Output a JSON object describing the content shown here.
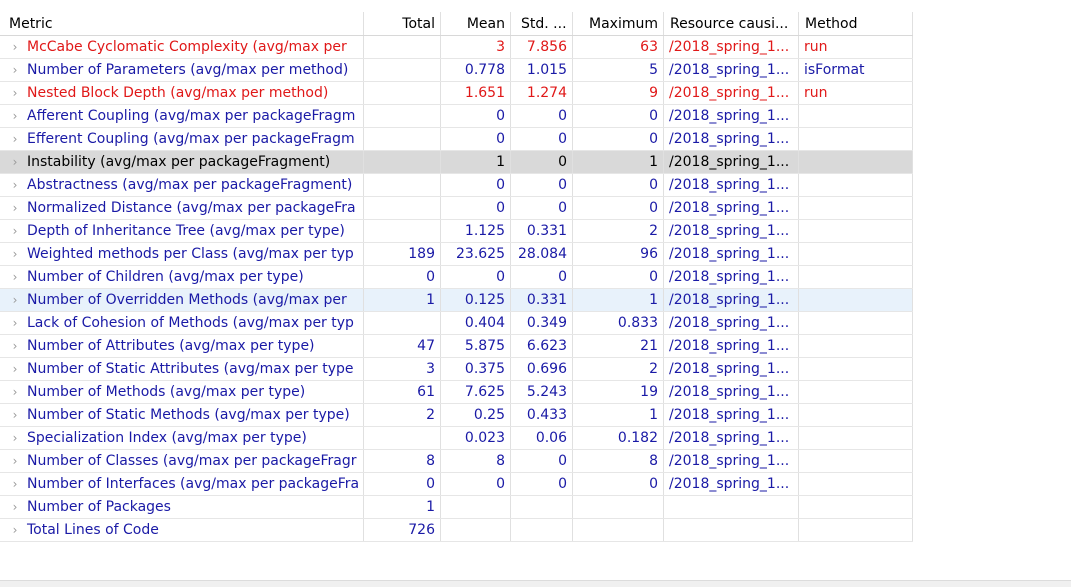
{
  "headers": {
    "metric": "Metric",
    "total": "Total",
    "mean": "Mean",
    "std": "Std. ...",
    "max": "Maximum",
    "resource": "Resource causi...",
    "method": "Method"
  },
  "rows": [
    {
      "metric": "McCabe Cyclomatic Complexity (avg/max per",
      "total": "",
      "mean": "3",
      "std": "7.856",
      "max": "63",
      "resource": "/2018_spring_1...",
      "method": "run"
    },
    {
      "metric": "Number of Parameters (avg/max per method)",
      "total": "",
      "mean": "0.778",
      "std": "1.015",
      "max": "5",
      "resource": "/2018_spring_1...",
      "method": "isFormat"
    },
    {
      "metric": "Nested Block Depth (avg/max per method)",
      "total": "",
      "mean": "1.651",
      "std": "1.274",
      "max": "9",
      "resource": "/2018_spring_1...",
      "method": "run"
    },
    {
      "metric": "Afferent Coupling (avg/max per packageFragm",
      "total": "",
      "mean": "0",
      "std": "0",
      "max": "0",
      "resource": "/2018_spring_1...",
      "method": ""
    },
    {
      "metric": "Efferent Coupling (avg/max per packageFragm",
      "total": "",
      "mean": "0",
      "std": "0",
      "max": "0",
      "resource": "/2018_spring_1...",
      "method": ""
    },
    {
      "metric": "Instability (avg/max per packageFragment)",
      "total": "",
      "mean": "1",
      "std": "0",
      "max": "1",
      "resource": "/2018_spring_1...",
      "method": ""
    },
    {
      "metric": "Abstractness (avg/max per packageFragment)",
      "total": "",
      "mean": "0",
      "std": "0",
      "max": "0",
      "resource": "/2018_spring_1...",
      "method": ""
    },
    {
      "metric": "Normalized Distance (avg/max per packageFra",
      "total": "",
      "mean": "0",
      "std": "0",
      "max": "0",
      "resource": "/2018_spring_1...",
      "method": ""
    },
    {
      "metric": "Depth of Inheritance Tree (avg/max per type)",
      "total": "",
      "mean": "1.125",
      "std": "0.331",
      "max": "2",
      "resource": "/2018_spring_1...",
      "method": ""
    },
    {
      "metric": "Weighted methods per Class (avg/max per typ",
      "total": "189",
      "mean": "23.625",
      "std": "28.084",
      "max": "96",
      "resource": "/2018_spring_1...",
      "method": ""
    },
    {
      "metric": "Number of Children (avg/max per type)",
      "total": "0",
      "mean": "0",
      "std": "0",
      "max": "0",
      "resource": "/2018_spring_1...",
      "method": ""
    },
    {
      "metric": "Number of Overridden Methods (avg/max per",
      "total": "1",
      "mean": "0.125",
      "std": "0.331",
      "max": "1",
      "resource": "/2018_spring_1...",
      "method": ""
    },
    {
      "metric": "Lack of Cohesion of Methods (avg/max per typ",
      "total": "",
      "mean": "0.404",
      "std": "0.349",
      "max": "0.833",
      "resource": "/2018_spring_1...",
      "method": ""
    },
    {
      "metric": "Number of Attributes (avg/max per type)",
      "total": "47",
      "mean": "5.875",
      "std": "6.623",
      "max": "21",
      "resource": "/2018_spring_1...",
      "method": ""
    },
    {
      "metric": "Number of Static Attributes (avg/max per type",
      "total": "3",
      "mean": "0.375",
      "std": "0.696",
      "max": "2",
      "resource": "/2018_spring_1...",
      "method": ""
    },
    {
      "metric": "Number of Methods (avg/max per type)",
      "total": "61",
      "mean": "7.625",
      "std": "5.243",
      "max": "19",
      "resource": "/2018_spring_1...",
      "method": ""
    },
    {
      "metric": "Number of Static Methods (avg/max per type)",
      "total": "2",
      "mean": "0.25",
      "std": "0.433",
      "max": "1",
      "resource": "/2018_spring_1...",
      "method": ""
    },
    {
      "metric": "Specialization Index (avg/max per type)",
      "total": "",
      "mean": "0.023",
      "std": "0.06",
      "max": "0.182",
      "resource": "/2018_spring_1...",
      "method": ""
    },
    {
      "metric": "Number of Classes (avg/max per packageFragr",
      "total": "8",
      "mean": "8",
      "std": "0",
      "max": "8",
      "resource": "/2018_spring_1...",
      "method": ""
    },
    {
      "metric": "Number of Interfaces (avg/max per packageFra",
      "total": "0",
      "mean": "0",
      "std": "0",
      "max": "0",
      "resource": "/2018_spring_1...",
      "method": ""
    },
    {
      "metric": "Number of Packages",
      "total": "1",
      "mean": "",
      "std": "",
      "max": "",
      "resource": "",
      "method": ""
    },
    {
      "metric": "Total Lines of Code",
      "total": "726",
      "mean": "",
      "std": "",
      "max": "",
      "resource": "",
      "method": ""
    }
  ],
  "colors": {
    "warn_text": "#e01818",
    "normal_text": "#1a1aa6",
    "selected_bg": "#d9d9d9",
    "hover_bg": "#e8f2fb"
  },
  "icons": {
    "row_expander": "chevron-right-icon"
  }
}
